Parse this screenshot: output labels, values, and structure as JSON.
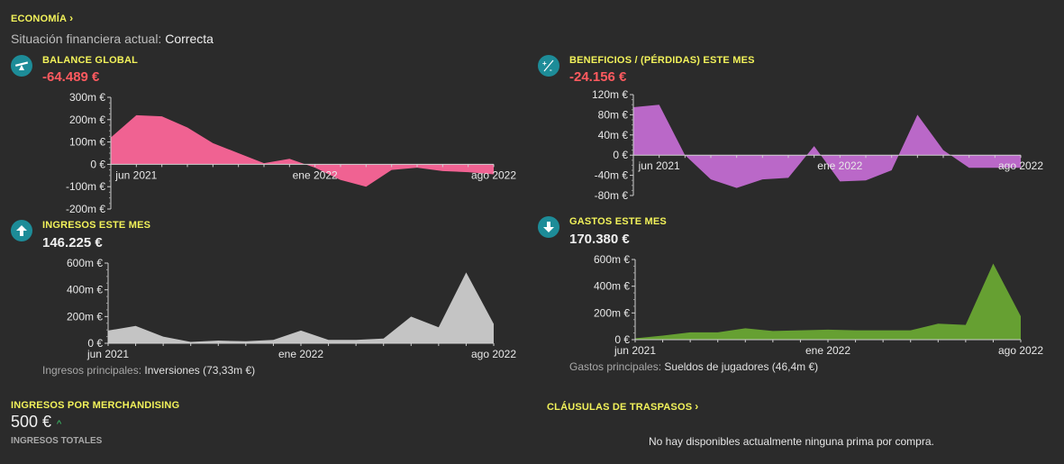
{
  "header": {
    "title": "ECONOMÍA",
    "status_label": "Situación financiera actual:",
    "status_value": "Correcta"
  },
  "balance": {
    "title": "BALANCE GLOBAL",
    "value": "-64.489 €",
    "icon": "seesaw-icon"
  },
  "benefits": {
    "title": "BENEFICIOS / (PÉRDIDAS) ESTE MES",
    "value": "-24.156 €",
    "icon": "plus-minus-icon"
  },
  "income": {
    "title": "INGRESOS ESTE MES",
    "value": "146.225 €",
    "icon": "arrow-up-icon",
    "main_label": "Ingresos principales:",
    "main_value": "Inversiones (73,33m €)"
  },
  "expenses": {
    "title": "GASTOS ESTE MES",
    "value": "170.380 €",
    "icon": "arrow-down-icon",
    "main_label": "Gastos principales:",
    "main_value": "Sueldos de jugadores (46,4m €)"
  },
  "merchandising": {
    "title": "INGRESOS POR MERCHANDISING",
    "value": "500 €",
    "sub": "INGRESOS TOTALES"
  },
  "transfer_clauses": {
    "title": "CLÁUSULAS DE TRASPASOS",
    "note": "No hay disponibles actualmente ninguna prima por compra."
  },
  "colors": {
    "accent_yellow": "#f2f25a",
    "icon_teal": "#1d8c98",
    "negative_red": "#ff5a5f",
    "balance_pink": "#f06292",
    "benefits_purple": "#ba68c8",
    "income_gray": "#c4c4c4",
    "expenses_green": "#66a032"
  },
  "chart_data": [
    {
      "type": "area",
      "name": "balance",
      "x_labels": [
        "jun 2021",
        "ene 2022",
        "ago 2022"
      ],
      "x_label_index": [
        1,
        8,
        15
      ],
      "y_ticks": [
        "300m €",
        "200m €",
        "100m €",
        "0 €",
        "-100m €",
        "-200m €"
      ],
      "y_tick_values": [
        300,
        200,
        100,
        0,
        -100,
        -200
      ],
      "ylim": [
        -200,
        300
      ],
      "values": [
        120,
        220,
        215,
        165,
        95,
        50,
        5,
        25,
        -15,
        -70,
        -100,
        -25,
        -15,
        -30,
        -35,
        -45
      ]
    },
    {
      "type": "area",
      "name": "benefits",
      "x_labels": [
        "jun 2021",
        "ene 2022",
        "ago 2022"
      ],
      "x_label_index": [
        1,
        8,
        15
      ],
      "y_ticks": [
        "120m €",
        "80m €",
        "40m €",
        "0 €",
        "-40m €",
        "-80m €"
      ],
      "y_tick_values": [
        120,
        80,
        40,
        0,
        -40,
        -80
      ],
      "ylim": [
        -80,
        120
      ],
      "values": [
        95,
        100,
        0,
        -48,
        -65,
        -48,
        -45,
        18,
        -52,
        -50,
        -30,
        80,
        10,
        -25,
        -25,
        -25
      ]
    },
    {
      "type": "area",
      "name": "income",
      "x_labels": [
        "jun 2021",
        "ene 2022",
        "ago 2022"
      ],
      "x_label_index": [
        0,
        7,
        14
      ],
      "y_ticks": [
        "600m €",
        "400m €",
        "200m €",
        "0 €"
      ],
      "y_tick_values": [
        600,
        400,
        200,
        0
      ],
      "ylim": [
        0,
        600
      ],
      "values": [
        95,
        130,
        50,
        10,
        20,
        15,
        25,
        95,
        25,
        25,
        35,
        200,
        120,
        530,
        145
      ]
    },
    {
      "type": "area",
      "name": "expenses",
      "x_labels": [
        "jun 2021",
        "ene 2022",
        "ago 2022"
      ],
      "x_label_index": [
        0,
        7,
        14
      ],
      "y_ticks": [
        "600m €",
        "400m €",
        "200m €",
        "0 €"
      ],
      "y_tick_values": [
        600,
        400,
        200,
        0
      ],
      "ylim": [
        0,
        600
      ],
      "values": [
        10,
        30,
        55,
        55,
        85,
        65,
        70,
        75,
        70,
        70,
        70,
        120,
        110,
        570,
        175
      ]
    }
  ]
}
